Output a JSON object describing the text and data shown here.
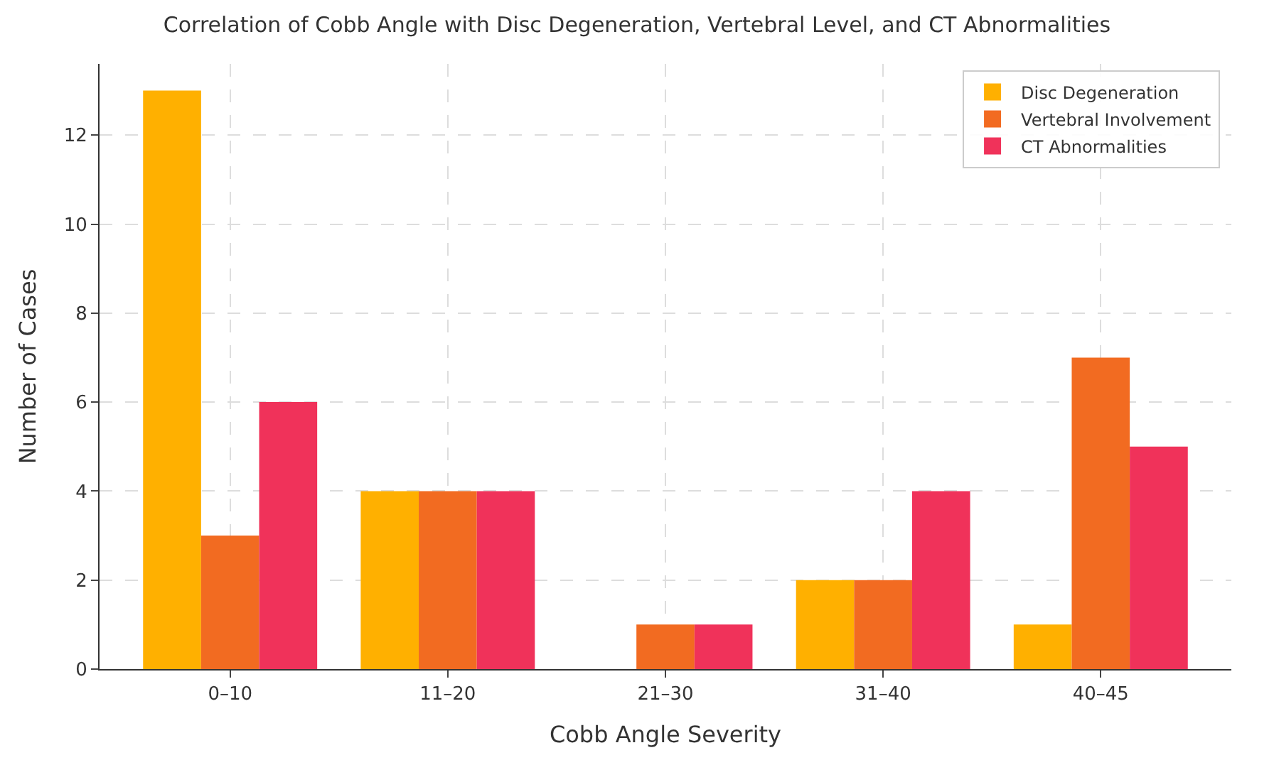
{
  "chart_data": {
    "type": "bar",
    "title": "Correlation of Cobb Angle with Disc Degeneration, Vertebral Level, and CT Abnormalities",
    "xlabel": "Cobb Angle Severity",
    "ylabel": "Number of Cases",
    "categories": [
      "0–10",
      "11–20",
      "21–30",
      "31–40",
      "40–45"
    ],
    "series": [
      {
        "name": "Disc Degeneration",
        "color": "#ffb000",
        "values": [
          13,
          4,
          0,
          2,
          1
        ]
      },
      {
        "name": "Vertebral Involvement",
        "color": "#f26b21",
        "values": [
          3,
          4,
          1,
          2,
          7
        ]
      },
      {
        "name": "CT Abnormalities",
        "color": "#f0325a",
        "values": [
          6,
          4,
          1,
          4,
          5
        ]
      }
    ],
    "ylim": [
      0,
      13.6
    ],
    "yticks": [
      0,
      2,
      4,
      6,
      8,
      10,
      12
    ],
    "grid": true,
    "legend": "top right"
  }
}
